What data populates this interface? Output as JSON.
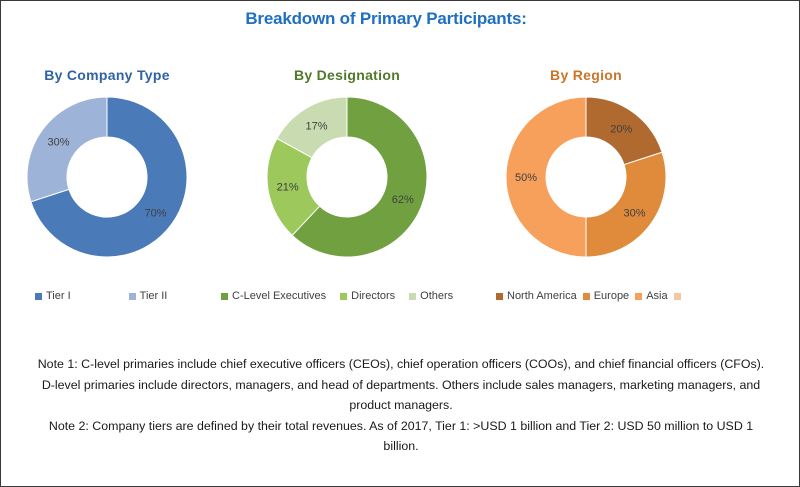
{
  "title": "Breakdown of Primary Participants:",
  "chart_data": [
    {
      "type": "pie",
      "variant": "donut",
      "title": "By Company Type",
      "title_color": "#2f63a3",
      "categories": [
        "Tier I",
        "Tier II"
      ],
      "values": [
        70,
        30
      ],
      "labels": [
        "70%",
        "30%"
      ],
      "colors": [
        "#4a7ab8",
        "#9db3d8"
      ],
      "legend_placement": "bottom"
    },
    {
      "type": "pie",
      "variant": "donut",
      "title": "By Designation",
      "title_color": "#4f7a2c",
      "categories": [
        "C-Level Executives",
        "Directors",
        "Others"
      ],
      "values": [
        62,
        21,
        17
      ],
      "labels": [
        "62%",
        "21%",
        "17%"
      ],
      "colors": [
        "#70a040",
        "#9cc85c",
        "#c9dcb1"
      ],
      "legend_placement": "bottom"
    },
    {
      "type": "pie",
      "variant": "donut",
      "title": "By Region",
      "title_color": "#c9752b",
      "categories": [
        "North America",
        "Europe",
        "Asia"
      ],
      "values": [
        20,
        30,
        50
      ],
      "labels": [
        "20%",
        "30%",
        "50%"
      ],
      "colors": [
        "#b06a2f",
        "#e08a3c",
        "#f7a05b"
      ],
      "legend_placement": "bottom",
      "legend_trailing_swatch_color": "#f6c8a2"
    }
  ],
  "notes": [
    "Note 1: C-level primaries include chief executive officers (CEOs), chief operation officers (COOs), and chief financial officers (CFOs). D-level primaries include directors, managers, and head of departments. Others include sales managers, marketing managers, and product managers.",
    "Note 2: Company tiers are defined by their total revenues. As of 2017, Tier 1: >USD 1 billion and Tier 2: USD 50 million to USD 1 billion."
  ]
}
